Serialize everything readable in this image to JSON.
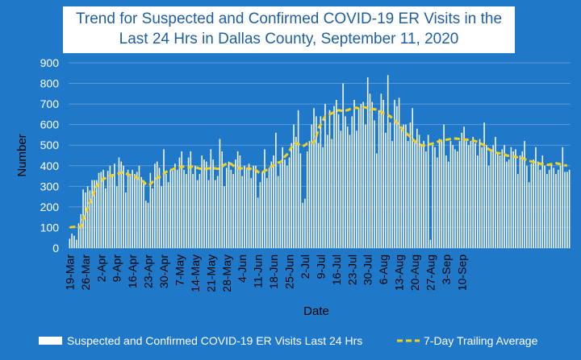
{
  "colors": {
    "background": "#1f78c8",
    "bars": "#ffffff",
    "trend_line": "#f2d21e",
    "title_text": "#1f5fa0",
    "gridline": "#5c9ad6"
  },
  "chart_data": {
    "type": "bar",
    "title": "Trend for Suspected and Confirmed COVID-19 ER Visits in the Last 24 Hrs in Dallas County, September 11, 2020",
    "title_lines": [
      "Trend for Suspected and Confirmed COVID-19 ER Visits in the",
      "Last 24 Hrs in Dallas County, September 11, 2020"
    ],
    "xlabel": "Date",
    "ylabel": "Number",
    "ylim": [
      0,
      900
    ],
    "yticks": [
      0,
      100,
      200,
      300,
      400,
      500,
      600,
      700,
      800,
      900
    ],
    "grid": true,
    "legend_position": "bottom",
    "x_start": "2020-03-19",
    "x_end": "2020-09-10",
    "xtick_labels": [
      "19-Mar",
      "26-Mar",
      "2-Apr",
      "9-Apr",
      "16-Apr",
      "23-Apr",
      "30-Apr",
      "7-May",
      "14-May",
      "21-May",
      "28-May",
      "4-Jun",
      "11-Jun",
      "18-Jun",
      "25-Jun",
      "2-Jul",
      "9-Jul",
      "16-Jul",
      "23-Jul",
      "30-Jul",
      "6-Aug",
      "13-Aug",
      "20-Aug",
      "27-Aug",
      "3-Sep",
      "10-Sep"
    ],
    "series": [
      {
        "name": "Suspected and Confirmed COVID-19 ER Visits Last 24 Hrs",
        "type": "bar",
        "values": [
          45,
          70,
          60,
          40,
          120,
          165,
          285,
          270,
          300,
          280,
          330,
          330,
          330,
          365,
          370,
          380,
          290,
          375,
          400,
          360,
          410,
          300,
          440,
          420,
          400,
          270,
          380,
          350,
          380,
          360,
          370,
          400,
          345,
          330,
          230,
          220,
          365,
          290,
          410,
          420,
          390,
          300,
          480,
          360,
          320,
          380,
          375,
          410,
          380,
          440,
          470,
          380,
          360,
          440,
          470,
          360,
          400,
          330,
          360,
          450,
          430,
          420,
          330,
          480,
          430,
          330,
          350,
          530,
          470,
          300,
          390,
          420,
          380,
          360,
          430,
          470,
          450,
          350,
          400,
          390,
          410,
          340,
          400,
          400,
          245,
          320,
          370,
          480,
          340,
          390,
          420,
          450,
          560,
          350,
          410,
          490,
          430,
          400,
          440,
          510,
          600,
          540,
          670,
          460,
          220,
          240,
          470,
          520,
          600,
          680,
          640,
          510,
          640,
          490,
          700,
          550,
          670,
          530,
          690,
          720,
          650,
          570,
          800,
          640,
          590,
          550,
          640,
          720,
          570,
          680,
          700,
          710,
          600,
          830,
          750,
          710,
          620,
          460,
          670,
          750,
          720,
          560,
          840,
          610,
          520,
          720,
          690,
          730,
          580,
          600,
          600,
          520,
          610,
          680,
          520,
          580,
          550,
          500,
          520,
          470,
          550,
          40,
          500,
          490,
          440,
          530,
          520,
          600,
          450,
          420,
          520,
          500,
          480,
          470,
          520,
          560,
          590,
          520,
          500,
          520,
          540,
          510,
          450,
          530,
          490,
          610,
          500,
          400,
          470,
          500,
          540,
          460,
          450,
          480,
          500,
          420,
          430,
          490,
          470,
          480,
          360,
          450,
          470,
          520,
          400,
          320,
          410,
          430,
          490,
          420,
          380,
          450,
          400,
          360,
          380,
          410,
          390,
          360,
          380,
          400,
          490,
          370,
          370,
          380
        ]
      },
      {
        "name": "7-Day Trailing Average",
        "type": "line",
        "values": [
          100,
          102,
          103,
          102,
          100,
          104,
          140,
          165,
          195,
          220,
          245,
          275,
          300,
          312,
          325,
          335,
          340,
          345,
          350,
          352,
          356,
          360,
          363,
          367,
          368,
          362,
          358,
          355,
          350,
          348,
          342,
          336,
          328,
          322,
          310,
          305,
          310,
          322,
          333,
          340,
          345,
          348,
          360,
          370,
          375,
          380,
          382,
          388,
          390,
          392,
          395,
          396,
          394,
          392,
          394,
          396,
          393,
          390,
          386,
          385,
          384,
          385,
          387,
          388,
          388,
          387,
          385,
          386,
          395,
          405,
          410,
          412,
          410,
          400,
          395,
          390,
          388,
          387,
          385,
          386,
          387,
          384,
          381,
          380,
          370,
          365,
          368,
          375,
          380,
          388,
          395,
          402,
          410,
          415,
          418,
          425,
          445,
          455,
          470,
          490,
          500,
          510,
          505,
          498,
          495,
          500,
          508,
          510,
          512,
          515,
          540,
          580,
          600,
          620,
          640,
          645,
          650,
          655,
          660,
          665,
          670,
          668,
          665,
          668,
          670,
          675,
          678,
          680,
          682,
          678,
          680,
          685,
          683,
          680,
          678,
          675,
          675,
          672,
          668,
          662,
          655,
          652,
          648,
          640,
          630,
          620,
          610,
          600,
          585,
          570,
          560,
          550,
          540,
          530,
          520,
          510,
          505,
          500,
          498,
          500,
          503,
          505,
          508,
          510,
          515,
          520,
          522,
          524,
          526,
          528,
          530,
          531,
          532,
          531,
          530,
          529,
          528,
          527,
          526,
          525,
          523,
          520,
          515,
          510,
          505,
          500,
          490,
          480,
          475,
          470,
          465,
          462,
          460,
          458,
          455,
          450,
          448,
          446,
          445,
          443,
          441,
          440,
          437,
          432,
          428,
          424,
          421,
          418,
          415,
          412,
          410,
          408,
          406,
          405,
          405,
          408,
          410,
          412,
          410,
          407,
          404,
          402,
          400
        ]
      }
    ]
  }
}
